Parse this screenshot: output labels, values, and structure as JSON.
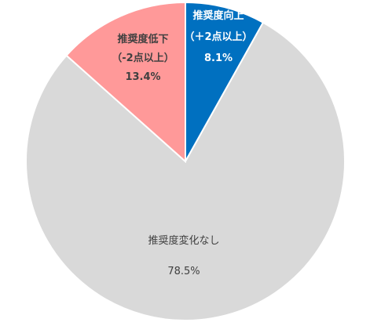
{
  "chart_data": {
    "type": "pie",
    "start_angle_deg": 0,
    "direction": "clockwise",
    "slices": [
      {
        "label": "推奨度向上",
        "sublabel": "（＋2点以上）",
        "value": 8.1,
        "value_label": "8.1%",
        "color": "#0070C0",
        "text_color": "#FFFFFF"
      },
      {
        "label": "推奨度変化なし",
        "sublabel": "",
        "value": 78.5,
        "value_label": "78.5%",
        "color": "#D9D9D9",
        "text_color": "#404040"
      },
      {
        "label": "推奨度低下",
        "sublabel": "（-2点以上）",
        "value": 13.4,
        "value_label": "13.4%",
        "color": "#FF9999",
        "text_color": "#404040"
      }
    ]
  }
}
